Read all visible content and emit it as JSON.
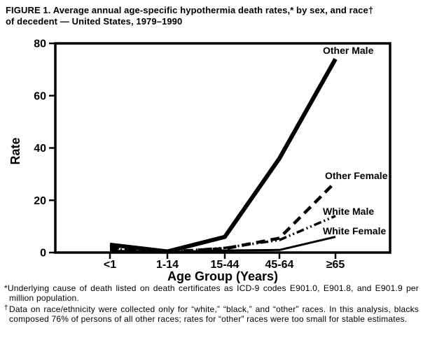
{
  "figure": {
    "title_line1": "FIGURE 1. Average annual age-specific hypothermia death rates,* by sex, and race†",
    "title_line2": "of decedent — United States, 1979–1990"
  },
  "colors": {
    "ink": "#000000",
    "background": "#ffffff"
  },
  "chart_data": {
    "type": "line",
    "title": "",
    "xlabel": "Age Group (Years)",
    "ylabel": "Rate",
    "categories": [
      "<1",
      "1-14",
      "15-44",
      "45-64",
      "≥65"
    ],
    "ylim": [
      0,
      80
    ],
    "yticks": [
      0,
      20,
      40,
      60,
      80
    ],
    "grid": false,
    "legend_position": "inline-end-of-line-labels",
    "series": [
      {
        "name": "Other Male",
        "values": [
          3.0,
          0.4,
          6.0,
          36.0,
          74.0
        ],
        "style": "solid-thick"
      },
      {
        "name": "Other Female",
        "values": [
          2.0,
          0.3,
          1.5,
          5.5,
          27.0
        ],
        "style": "dashed"
      },
      {
        "name": "White Male",
        "values": [
          1.2,
          0.3,
          1.8,
          4.8,
          14.0
        ],
        "style": "dash-dot-dot"
      },
      {
        "name": "White Female",
        "values": [
          0.7,
          0.2,
          0.8,
          1.0,
          6.0
        ],
        "style": "solid-thin"
      }
    ]
  },
  "footnotes": [
    {
      "marker": "*",
      "text": "Underlying cause of death listed on death certificates as ICD-9 codes E901.0, E901.8, and E901.9 per million population."
    },
    {
      "marker": "†",
      "text": "Data on race/ethnicity were collected only for “white,” “black,” and “other” races. In this analysis, blacks composed 76% of persons of all other races; rates for “other” races were too small for stable estimates."
    }
  ]
}
